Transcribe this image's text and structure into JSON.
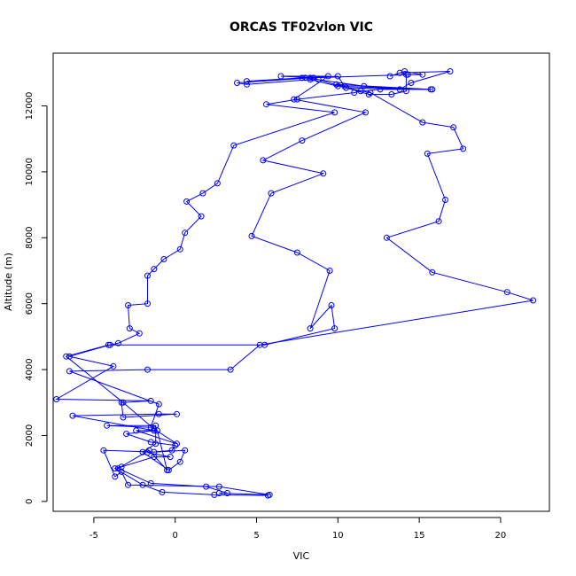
{
  "chart_data": {
    "type": "scatter",
    "title": "ORCAS TF02vlon VIC",
    "xlabel": "VIC",
    "ylabel": "Altitude (m)",
    "xlim": [
      -7.5,
      23
    ],
    "ylim": [
      -300,
      13600
    ],
    "xticks": [
      -5,
      0,
      5,
      10,
      15,
      20
    ],
    "yticks": [
      0,
      2000,
      4000,
      6000,
      8000,
      10000,
      12000
    ],
    "grid": false,
    "legend": "none",
    "line_color": "#0000ff",
    "series": [
      {
        "points": [
          [
            5.7,
            180
          ],
          [
            2.4,
            200
          ],
          [
            -0.8,
            280
          ],
          [
            -2.0,
            500
          ],
          [
            -3.7,
            1000
          ],
          [
            -3.3,
            1050
          ],
          [
            -1.3,
            1350
          ],
          [
            -0.3,
            1350
          ],
          [
            -1.7,
            1480
          ],
          [
            -0.2,
            1550
          ],
          [
            0.0,
            1700
          ],
          [
            -1.5,
            1800
          ],
          [
            -3.0,
            2050
          ],
          [
            -1.3,
            2150
          ],
          [
            -6.3,
            2600
          ],
          [
            -1.0,
            2650
          ],
          [
            0.1,
            2650
          ],
          [
            -3.2,
            2550
          ],
          [
            -3.3,
            3000
          ],
          [
            -1.5,
            3050
          ],
          [
            -7.3,
            3100
          ],
          [
            -3.8,
            4100
          ],
          [
            -6.5,
            4400
          ],
          [
            -4.0,
            4750
          ],
          [
            -3.5,
            4800
          ],
          [
            -2.2,
            5100
          ],
          [
            -2.8,
            5250
          ],
          [
            -2.9,
            5950
          ],
          [
            -1.7,
            6000
          ],
          [
            -1.7,
            6850
          ],
          [
            -1.3,
            7050
          ],
          [
            -0.7,
            7350
          ],
          [
            0.3,
            7650
          ],
          [
            0.6,
            8150
          ],
          [
            1.6,
            8650
          ],
          [
            0.7,
            9100
          ],
          [
            1.7,
            9350
          ],
          [
            2.6,
            9650
          ],
          [
            3.6,
            10800
          ],
          [
            9.8,
            11800
          ],
          [
            5.6,
            12050
          ],
          [
            7.5,
            12200
          ],
          [
            11.0,
            12400
          ],
          [
            11.4,
            12450
          ],
          [
            12.6,
            12500
          ],
          [
            15.8,
            12500
          ],
          [
            10.0,
            12600
          ],
          [
            8.3,
            12800
          ],
          [
            4.4,
            12650
          ],
          [
            3.8,
            12700
          ],
          [
            8.3,
            12850
          ],
          [
            14.3,
            12950
          ],
          [
            15.2,
            12950
          ],
          [
            14.1,
            13050
          ],
          [
            13.2,
            12900
          ]
        ]
      },
      {
        "points": [
          [
            2.7,
            250
          ],
          [
            5.8,
            200
          ],
          [
            2.7,
            450
          ],
          [
            -2.9,
            500
          ],
          [
            -3.3,
            900
          ],
          [
            -3.7,
            750
          ],
          [
            -4.4,
            1550
          ],
          [
            -1.3,
            1500
          ],
          [
            0.6,
            1550
          ],
          [
            0.3,
            1200
          ],
          [
            -0.4,
            950
          ],
          [
            -2.0,
            1500
          ],
          [
            -1.2,
            1750
          ],
          [
            -1.2,
            2300
          ],
          [
            -4.2,
            2300
          ],
          [
            -1.5,
            2250
          ],
          [
            -1.0,
            2950
          ],
          [
            -6.5,
            3950
          ],
          [
            -1.7,
            4000
          ],
          [
            3.4,
            4000
          ],
          [
            5.2,
            4750
          ],
          [
            22.0,
            6100
          ],
          [
            20.4,
            6350
          ],
          [
            15.8,
            6950
          ],
          [
            13.0,
            8000
          ],
          [
            16.2,
            8500
          ],
          [
            16.6,
            9150
          ],
          [
            15.5,
            10550
          ],
          [
            17.7,
            10700
          ],
          [
            17.1,
            11350
          ],
          [
            15.2,
            11500
          ],
          [
            12.0,
            12400
          ],
          [
            10.5,
            12550
          ],
          [
            15.7,
            12500
          ],
          [
            9.9,
            12650
          ],
          [
            10.4,
            12600
          ],
          [
            10.0,
            12900
          ],
          [
            7.8,
            12850
          ],
          [
            4.4,
            12750
          ],
          [
            8.0,
            12850
          ],
          [
            11.6,
            12600
          ],
          [
            13.8,
            12500
          ],
          [
            14.5,
            12700
          ],
          [
            16.9,
            13050
          ],
          [
            13.8,
            13000
          ]
        ]
      },
      {
        "points": [
          [
            3.2,
            250
          ],
          [
            1.9,
            450
          ],
          [
            -1.5,
            550
          ],
          [
            -3.5,
            1000
          ],
          [
            -1.6,
            1550
          ],
          [
            -0.5,
            950
          ],
          [
            -1.1,
            2150
          ],
          [
            -2.4,
            2150
          ],
          [
            0.1,
            1750
          ],
          [
            -1.3,
            2200
          ],
          [
            -3.2,
            3000
          ],
          [
            -6.7,
            4400
          ],
          [
            -4.1,
            4750
          ],
          [
            5.5,
            4750
          ],
          [
            9.8,
            5250
          ],
          [
            9.6,
            5950
          ],
          [
            8.3,
            5250
          ],
          [
            9.5,
            7000
          ],
          [
            7.5,
            7550
          ],
          [
            4.7,
            8050
          ],
          [
            5.9,
            9350
          ],
          [
            9.1,
            9950
          ],
          [
            5.4,
            10350
          ],
          [
            7.8,
            10950
          ],
          [
            11.7,
            11800
          ],
          [
            7.3,
            12200
          ],
          [
            9.4,
            12900
          ],
          [
            6.5,
            12900
          ],
          [
            8.5,
            12850
          ],
          [
            8.8,
            12800
          ],
          [
            11.9,
            12350
          ],
          [
            13.3,
            12350
          ],
          [
            14.2,
            12450
          ],
          [
            14.2,
            12950
          ]
        ]
      }
    ]
  }
}
